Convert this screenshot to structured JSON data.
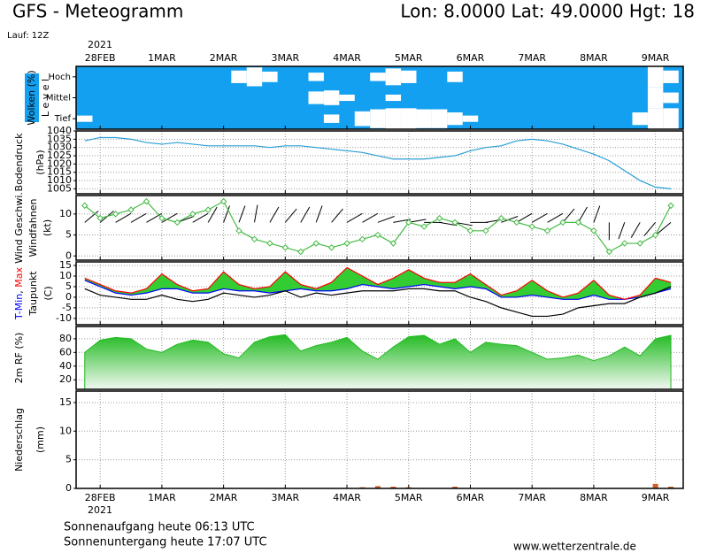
{
  "header": {
    "title": "GFS - Meteogramm",
    "location": "Lon: 8.0000 Lat: 49.0000 Hgt: 18",
    "run": "Lauf: 12Z",
    "year": "2021"
  },
  "time_axis": {
    "x": [
      -0.25,
      0,
      0.25,
      0.5,
      0.75,
      1,
      1.25,
      1.5,
      1.75,
      2,
      2.25,
      2.5,
      2.75,
      3,
      3.25,
      3.5,
      3.75,
      4,
      4.25,
      4.5,
      4.75,
      5,
      5.25,
      5.5,
      5.75,
      6,
      6.25,
      6.5,
      6.75,
      7,
      7.25,
      7.5,
      7.75,
      8,
      8.25,
      8.5,
      8.75,
      9,
      9.25
    ],
    "xlim": [
      -0.39,
      9.45
    ],
    "xticks": [
      {
        "value": 0,
        "label": "28FEB"
      },
      {
        "value": 1,
        "label": "1MAR"
      },
      {
        "value": 2,
        "label": "2MAR"
      },
      {
        "value": 3,
        "label": "3MAR"
      },
      {
        "value": 4,
        "label": "4MAR"
      },
      {
        "value": 5,
        "label": "5MAR"
      },
      {
        "value": 6,
        "label": "6MAR"
      },
      {
        "value": 7,
        "label": "7MAR"
      },
      {
        "value": 8,
        "label": "8MAR"
      },
      {
        "value": 9,
        "label": "9MAR"
      }
    ]
  },
  "chart_data": [
    {
      "type": "clouds",
      "ylabel": [
        "Wolken (%)",
        "L e v e l"
      ],
      "background": "#14a0f0",
      "color": "#ffffff",
      "series": [
        {
          "name": "Hoch",
          "values": [
            0,
            0,
            0,
            0,
            0,
            0,
            0,
            0,
            0,
            0,
            60,
            90,
            50,
            0,
            0,
            40,
            0,
            0,
            0,
            40,
            80,
            60,
            0,
            0,
            50,
            0,
            0,
            0,
            0,
            0,
            0,
            0,
            0,
            0,
            0,
            0,
            0,
            100,
            60
          ]
        },
        {
          "name": "Mittel",
          "values": [
            0,
            0,
            0,
            0,
            0,
            0,
            0,
            0,
            0,
            0,
            0,
            0,
            0,
            0,
            0,
            60,
            70,
            30,
            0,
            0,
            30,
            0,
            0,
            0,
            0,
            0,
            0,
            0,
            0,
            0,
            0,
            0,
            0,
            0,
            0,
            0,
            0,
            100,
            50
          ]
        },
        {
          "name": "Tief",
          "values": [
            30,
            0,
            0,
            0,
            0,
            0,
            0,
            0,
            0,
            0,
            0,
            0,
            0,
            0,
            0,
            0,
            40,
            0,
            70,
            90,
            100,
            100,
            90,
            90,
            60,
            30,
            0,
            0,
            0,
            0,
            0,
            0,
            0,
            0,
            0,
            0,
            60,
            100,
            100
          ]
        }
      ]
    },
    {
      "type": "line",
      "ylabel": [
        "Bodendruck",
        "(hPa)"
      ],
      "ylim": [
        1002,
        1040
      ],
      "yticks": [
        1005,
        1010,
        1015,
        1020,
        1025,
        1030,
        1035,
        1040
      ],
      "grid": true,
      "series": [
        {
          "color": "#2a9fd6",
          "values": [
            1034,
            1036,
            1036,
            1035,
            1033,
            1032,
            1033,
            1032,
            1031,
            1031,
            1031,
            1031,
            1030,
            1031,
            1031,
            1030,
            1029,
            1028,
            1027,
            1025,
            1023,
            1023,
            1023,
            1024,
            1025,
            1028,
            1030,
            1031,
            1034,
            1035,
            1034,
            1032,
            1029,
            1026,
            1022,
            1016,
            1010,
            1006,
            1005
          ]
        }
      ]
    },
    {
      "type": "wind",
      "ylabel": [
        "Wind Geschwi.",
        "Windfahnen",
        "(kt)"
      ],
      "ylim": [
        -1,
        14.4
      ],
      "yticks": [
        0,
        5,
        10
      ],
      "grid": true,
      "series": [
        {
          "color": "#44bb44",
          "values": [
            12,
            9,
            10,
            11,
            13,
            9,
            8,
            10,
            11,
            13,
            6,
            4,
            3,
            2,
            1,
            3,
            2,
            3,
            4,
            5,
            3,
            8,
            7,
            9,
            8,
            6,
            6,
            9,
            8,
            7,
            6,
            8,
            8,
            6,
            1,
            3,
            3,
            5,
            12
          ]
        }
      ],
      "directions": [
        50,
        50,
        60,
        60,
        60,
        60,
        70,
        60,
        30,
        20,
        20,
        10,
        30,
        40,
        30,
        20,
        40,
        60,
        60,
        70,
        80,
        80,
        90,
        100,
        100,
        90,
        80,
        70,
        60,
        60,
        60,
        40,
        30,
        20,
        180,
        200,
        210,
        220,
        230
      ]
    },
    {
      "type": "temperature",
      "ylabel": [
        "Taupunkt",
        "(C)"
      ],
      "separator": ", ",
      "ylim": [
        -13,
        16.7
      ],
      "yticks": [
        -10,
        -5,
        0,
        5,
        10,
        15
      ],
      "grid": true,
      "fill": "#33cc33",
      "series": [
        {
          "name": "T-Min",
          "color": "#0000ff",
          "values": [
            8,
            5,
            2,
            1,
            2,
            4,
            4,
            2,
            2,
            4,
            3,
            3,
            2,
            3,
            4,
            3,
            3,
            4,
            6,
            5,
            4,
            5,
            6,
            5,
            4,
            5,
            4,
            0,
            0,
            1,
            0,
            -1,
            -1,
            1,
            -1,
            -1,
            0,
            2,
            4
          ]
        },
        {
          "name": "Max",
          "color": "#ff0000",
          "values": [
            9,
            6,
            3,
            2,
            4,
            11,
            6,
            3,
            4,
            12,
            6,
            4,
            5,
            12,
            6,
            4,
            7,
            14,
            10,
            6,
            9,
            13,
            9,
            7,
            7,
            11,
            6,
            1,
            3,
            8,
            3,
            0,
            2,
            8,
            1,
            -1,
            1,
            9,
            7
          ]
        },
        {
          "name": "Taupunkt",
          "color": "#000000",
          "values": [
            4,
            1,
            0,
            -1,
            -1,
            1,
            -1,
            -2,
            -1,
            2,
            1,
            0,
            1,
            3,
            0,
            2,
            1,
            2,
            3,
            3,
            3,
            4,
            4,
            3,
            3,
            0,
            -2,
            -5,
            -7,
            -9,
            -9,
            -8,
            -5,
            -4,
            -3,
            -3,
            0,
            2,
            5
          ]
        }
      ]
    },
    {
      "type": "area",
      "ylabel": [
        "2m RF (%)"
      ],
      "ylim": [
        6,
        98
      ],
      "yticks": [
        20,
        40,
        60,
        80
      ],
      "grid": true,
      "series": [
        {
          "color": "#22bb22",
          "values": [
            60,
            78,
            82,
            80,
            65,
            60,
            72,
            78,
            75,
            58,
            52,
            75,
            83,
            86,
            62,
            70,
            75,
            82,
            62,
            50,
            68,
            83,
            85,
            72,
            80,
            60,
            75,
            72,
            70,
            60,
            50,
            52,
            56,
            48,
            55,
            68,
            55,
            80,
            85
          ]
        }
      ]
    },
    {
      "type": "bar",
      "ylabel": [
        "Niederschlag",
        "(mm)"
      ],
      "ylim": [
        0,
        17
      ],
      "yticks": [
        0,
        5,
        10,
        15
      ],
      "grid": true,
      "series": [
        {
          "color": "#d0602a",
          "values": [
            0,
            0,
            0,
            0,
            0,
            0,
            0,
            0,
            0,
            0,
            0,
            0,
            0,
            0,
            0,
            0,
            0,
            0,
            0.2,
            0.4,
            0.3,
            0.2,
            0.1,
            0,
            0.3,
            0,
            0,
            0,
            0,
            0,
            0,
            0,
            0,
            0,
            0,
            0,
            0,
            0.8,
            0.3
          ]
        }
      ]
    }
  ],
  "footer": {
    "sunrise": "Sonnenaufgang heute 06:13 UTC",
    "sunset": "Sonnenuntergang heute 17:07 UTC",
    "source": "www.wetterzentrale.de"
  }
}
